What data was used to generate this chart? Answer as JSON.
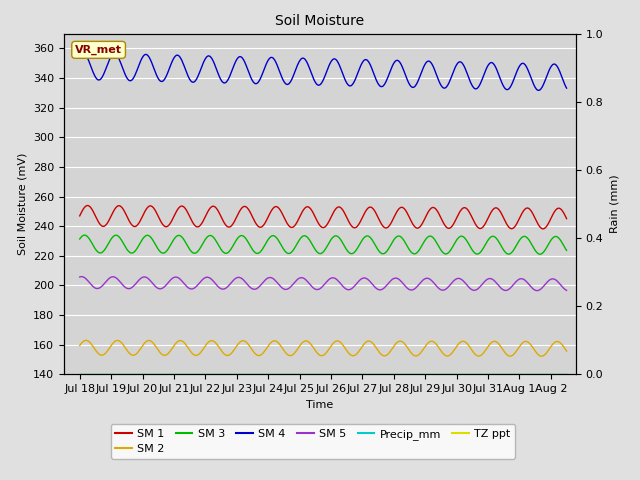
{
  "title": "Soil Moisture",
  "xlabel": "Time",
  "ylabel_left": "Soil Moisture (mV)",
  "ylabel_right": "Rain (mm)",
  "ylim_left": [
    140,
    370
  ],
  "ylim_right": [
    0.0,
    1.0
  ],
  "yticks_left": [
    140,
    160,
    180,
    200,
    220,
    240,
    260,
    280,
    300,
    320,
    340,
    360
  ],
  "yticks_right": [
    0.0,
    0.2,
    0.4,
    0.6,
    0.8,
    1.0
  ],
  "n_points": 800,
  "duration_days": 15.5,
  "series": {
    "SM1": {
      "color": "#cc0000",
      "base": 247,
      "amplitude": 7,
      "period_days": 1.0,
      "phase": 0.0,
      "trend": -0.12
    },
    "SM2": {
      "color": "#ddaa00",
      "base": 158,
      "amplitude": 5,
      "period_days": 1.0,
      "phase": 0.3,
      "trend": -0.05
    },
    "SM3": {
      "color": "#00bb00",
      "base": 228,
      "amplitude": 6,
      "period_days": 1.0,
      "phase": 0.6,
      "trend": -0.06
    },
    "SM4": {
      "color": "#0000cc",
      "base": 348,
      "amplitude": 9,
      "period_days": 1.0,
      "phase": 0.9,
      "trend": -0.5
    },
    "SM5": {
      "color": "#9933cc",
      "base": 202,
      "amplitude": 4,
      "period_days": 1.0,
      "phase": 1.2,
      "trend": -0.1
    },
    "Precip_mm": {
      "color": "#00cccc",
      "base": 0,
      "amplitude": 0,
      "period_days": 1.0,
      "phase": 0.0,
      "trend": 0.0
    },
    "TZ_ppt": {
      "color": "#dddd00",
      "base": 140,
      "amplitude": 0,
      "period_days": 1.0,
      "phase": 0.0,
      "trend": 0.0
    }
  },
  "legend_labels_row1": [
    "SM 1",
    "SM 2",
    "SM 3",
    "SM 4",
    "SM 5",
    "Precip_mm"
  ],
  "legend_colors_row1": [
    "#cc0000",
    "#ddaa00",
    "#00bb00",
    "#0000cc",
    "#9933cc",
    "#00cccc"
  ],
  "legend_labels_row2": [
    "TZ ppt"
  ],
  "legend_colors_row2": [
    "#dddd00"
  ],
  "annotation_text": "VR_met",
  "bg_color": "#e0e0e0",
  "plot_bg_color": "#d4d4d4",
  "linewidth": 1.0,
  "x_tick_labels": [
    "Jul 18",
    "Jul 19",
    "Jul 20",
    "Jul 21",
    "Jul 22",
    "Jul 23",
    "Jul 24",
    "Jul 25",
    "Jul 26",
    "Jul 27",
    "Jul 28",
    "Jul 29",
    "Jul 30",
    "Jul 31",
    "Aug 1",
    "Aug 2"
  ],
  "x_tick_positions": [
    0,
    1,
    2,
    3,
    4,
    5,
    6,
    7,
    8,
    9,
    10,
    11,
    12,
    13,
    14,
    15
  ]
}
